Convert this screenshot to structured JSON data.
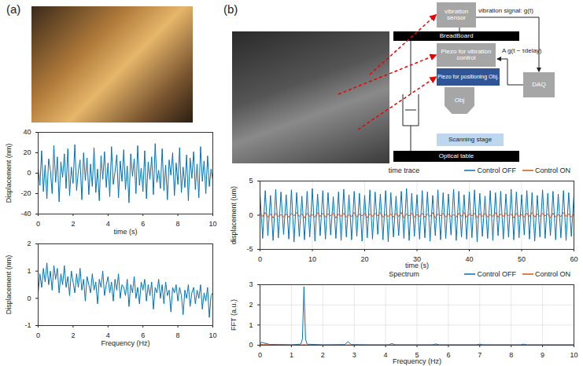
{
  "panel_labels": [
    "(a)",
    "(b)"
  ],
  "diagram": {
    "vibration_sensor": "vibration sensor",
    "breadboard": "BreadBoard",
    "piezo_vibration": "Piezo for vibration control",
    "piezo_positioning": "Piezo for positioning Obj.",
    "objective": "Obj",
    "daq": "DAQ",
    "scanning_stage": "Scanning stage",
    "optical_table": "Optical table",
    "signal_label": "vibration signal: g(t)",
    "feedback_label": "A g(t − τdelay)"
  },
  "chart_data": [
    {
      "type": "line",
      "xlabel": "time (s)",
      "ylabel": "Displacement (nm)",
      "xlim": [
        0,
        10
      ],
      "xticks": [
        0,
        2,
        4,
        6,
        8,
        10
      ],
      "ylim": [
        -40,
        40
      ],
      "yticks": [
        -40,
        -20,
        0,
        20,
        40
      ],
      "grid": false,
      "x": [
        0,
        0.1,
        0.2,
        0.3,
        0.4,
        0.5,
        0.6,
        0.7,
        0.8,
        0.9,
        1,
        1.1,
        1.2,
        1.3,
        1.4,
        1.5,
        1.6,
        1.7,
        1.8,
        1.9,
        2,
        2.1,
        2.2,
        2.3,
        2.4,
        2.5,
        2.6,
        2.7,
        2.8,
        2.9,
        3,
        3.1,
        3.2,
        3.3,
        3.4,
        3.5,
        3.6,
        3.7,
        3.8,
        3.9,
        4,
        4.1,
        4.2,
        4.3,
        4.4,
        4.5,
        4.6,
        4.7,
        4.8,
        4.9,
        5,
        5.1,
        5.2,
        5.3,
        5.4,
        5.5,
        5.6,
        5.7,
        5.8,
        5.9,
        6,
        6.1,
        6.2,
        6.3,
        6.4,
        6.5,
        6.6,
        6.7,
        6.8,
        6.9,
        7,
        7.1,
        7.2,
        7.3,
        7.4,
        7.5,
        7.6,
        7.7,
        7.8,
        7.9,
        8,
        8.1,
        8.2,
        8.3,
        8.4,
        8.5,
        8.6,
        8.7,
        8.8,
        8.9,
        9,
        9.1,
        9.2,
        9.3,
        9.4,
        9.5,
        9.6,
        9.7,
        9.8,
        9.9,
        10
      ],
      "series": [
        {
          "color": "#0072bd",
          "values": [
            5,
            -12,
            22,
            -18,
            8,
            -25,
            14,
            3,
            -20,
            27,
            -9,
            16,
            -28,
            11,
            -4,
            19,
            -15,
            24,
            -22,
            6,
            -10,
            28,
            -17,
            2,
            13,
            -26,
            20,
            -7,
            15,
            -21,
            9,
            -13,
            25,
            -19,
            4,
            -27,
            17,
            -6,
            21,
            -14,
            10,
            -23,
            26,
            -11,
            1,
            18,
            -24,
            12,
            -8,
            23,
            -16,
            7,
            -29,
            19,
            -3,
            14,
            -20,
            27,
            -12,
            5,
            -18,
            22,
            -25,
            11,
            -6,
            16,
            -21,
            29,
            -9,
            3,
            -15,
            24,
            -17,
            8,
            -26,
            13,
            -2,
            20,
            -22,
            10,
            -11,
            25,
            -19,
            6,
            -14,
            18,
            -27,
            15,
            -5,
            21,
            -16,
            9,
            -24,
            26,
            -8,
            12,
            -20,
            17,
            -13,
            4,
            -7
          ]
        }
      ]
    },
    {
      "type": "line",
      "xlabel": "Frequency (Hz)",
      "ylabel": "Displacement (nm)",
      "xlim": [
        0,
        10
      ],
      "xticks": [
        0,
        2,
        4,
        6,
        8,
        10
      ],
      "ylim": [
        -1,
        2
      ],
      "yticks": [
        -1,
        0,
        1,
        2
      ],
      "grid": false,
      "x": [
        0,
        0.1,
        0.2,
        0.3,
        0.4,
        0.5,
        0.6,
        0.7,
        0.8,
        0.9,
        1,
        1.1,
        1.2,
        1.3,
        1.4,
        1.5,
        1.6,
        1.7,
        1.8,
        1.9,
        2,
        2.1,
        2.2,
        2.3,
        2.4,
        2.5,
        2.6,
        2.7,
        2.8,
        2.9,
        3,
        3.1,
        3.2,
        3.3,
        3.4,
        3.5,
        3.6,
        3.7,
        3.8,
        3.9,
        4,
        4.1,
        4.2,
        4.3,
        4.4,
        4.5,
        4.6,
        4.7,
        4.8,
        4.9,
        5,
        5.1,
        5.2,
        5.3,
        5.4,
        5.5,
        5.6,
        5.7,
        5.8,
        5.9,
        6,
        6.1,
        6.2,
        6.3,
        6.4,
        6.5,
        6.6,
        6.7,
        6.8,
        6.9,
        7,
        7.1,
        7.2,
        7.3,
        7.4,
        7.5,
        7.6,
        7.7,
        7.8,
        7.9,
        8,
        8.1,
        8.2,
        8.3,
        8.4,
        8.5,
        8.6,
        8.7,
        8.8,
        8.9,
        9,
        9.1,
        9.2,
        9.3,
        9.4,
        9.5,
        9.6,
        9.7,
        9.8,
        9.9,
        10
      ],
      "series": [
        {
          "color": "#0072bd",
          "values": [
            0.2,
            0.9,
            0.4,
            1.1,
            0.6,
            1.3,
            0.5,
            1.0,
            0.3,
            1.2,
            0.7,
            1.1,
            0.2,
            0.9,
            0.5,
            1.2,
            0.4,
            0.8,
            0.1,
            1.0,
            0.6,
            0.2,
            0.9,
            0.4,
            1.1,
            0.3,
            0.7,
            -0.1,
            0.8,
            0.5,
            0.2,
            0.9,
            0.3,
            0.6,
            -0.2,
            0.7,
            0.4,
            1.0,
            0.1,
            0.5,
            0.8,
            0.2,
            0.6,
            -0.1,
            0.7,
            0.3,
            0.9,
            0.0,
            0.5,
            0.4,
            0.1,
            0.7,
            -0.3,
            0.5,
            0.2,
            0.8,
            0.0,
            0.4,
            -0.2,
            0.6,
            0.3,
            0.7,
            -0.1,
            0.5,
            0.1,
            0.6,
            -0.4,
            0.4,
            0.2,
            0.7,
            0.0,
            0.5,
            -0.2,
            0.6,
            0.1,
            0.3,
            -0.5,
            0.4,
            0.2,
            0.5,
            -0.1,
            0.4,
            0.1,
            -0.6,
            0.3,
            0.0,
            0.5,
            -0.3,
            0.2,
            0.4,
            -0.2,
            0.3,
            0.0,
            0.5,
            -0.4,
            0.2,
            -0.1,
            0.4,
            -0.7,
            0.1,
            0.2
          ]
        }
      ]
    },
    {
      "type": "line",
      "title": "time trace",
      "xlabel": "time (s)",
      "ylabel": "displacement (um)",
      "xlim": [
        0,
        60
      ],
      "xticks": [
        0,
        10,
        20,
        30,
        40,
        50,
        60
      ],
      "ylim": [
        -5,
        5
      ],
      "yticks": [
        -5,
        0,
        5
      ],
      "grid": true,
      "legend": "top right",
      "x": [
        0,
        0.5,
        1,
        1.5,
        2,
        2.5,
        3,
        3.5,
        4,
        4.5,
        5,
        5.5,
        6,
        6.5,
        7,
        7.5,
        8,
        8.5,
        9,
        9.5,
        10,
        10.5,
        11,
        11.5,
        12,
        12.5,
        13,
        13.5,
        14,
        14.5,
        15,
        15.5,
        16,
        16.5,
        17,
        17.5,
        18,
        18.5,
        19,
        19.5,
        20,
        20.5,
        21,
        21.5,
        22,
        22.5,
        23,
        23.5,
        24,
        24.5,
        25,
        25.5,
        26,
        26.5,
        27,
        27.5,
        28,
        28.5,
        29,
        29.5,
        30,
        30.5,
        31,
        31.5,
        32,
        32.5,
        33,
        33.5,
        34,
        34.5,
        35,
        35.5,
        36,
        36.5,
        37,
        37.5,
        38,
        38.5,
        39,
        39.5,
        40,
        40.5,
        41,
        41.5,
        42,
        42.5,
        43,
        43.5,
        44,
        44.5,
        45,
        45.5,
        46,
        46.5,
        47,
        47.5,
        48,
        48.5,
        49,
        49.5,
        50,
        50.5,
        51,
        51.5,
        52,
        52.5,
        53,
        53.5,
        54,
        54.5,
        55,
        55.5,
        56,
        56.5,
        57,
        57.5,
        58,
        58.5,
        59,
        59.5,
        60
      ],
      "series": [
        {
          "name": "Control OFF",
          "color": "#0072bd",
          "values": [
            3.2,
            -3.4,
            3.6,
            -3.0,
            2.9,
            -3.7,
            3.8,
            -3.3,
            3.4,
            -2.8,
            3.0,
            -3.5,
            3.7,
            -3.9,
            3.3,
            -3.1,
            2.8,
            -3.6,
            3.5,
            -3.2,
            3.9,
            -3.8,
            3.1,
            -3.0,
            3.6,
            -3.5,
            3.3,
            -2.9,
            2.7,
            -3.4,
            3.4,
            -3.7,
            3.8,
            -3.2,
            3.0,
            -3.6,
            3.5,
            -3.1,
            3.2,
            -3.8,
            2.9,
            -3.3,
            3.7,
            -3.5,
            3.4,
            -2.8,
            3.1,
            -3.6,
            3.6,
            -3.9,
            3.3,
            -3.2,
            2.8,
            -3.0,
            3.5,
            -3.4,
            3.9,
            -3.7,
            3.2,
            -3.1,
            3.0,
            -3.5,
            3.6,
            -3.3,
            3.4,
            -3.8,
            2.9,
            -3.0,
            3.7,
            -3.6,
            3.3,
            -3.4,
            3.1,
            -2.9,
            3.8,
            -3.7,
            3.5,
            -3.2,
            3.0,
            -3.5,
            3.4,
            -3.3,
            3.7,
            -3.9,
            3.2,
            -3.1,
            2.8,
            -3.4,
            3.6,
            -3.7,
            3.3,
            -3.0,
            3.5,
            -3.5,
            3.1,
            -3.2,
            3.8,
            -3.6,
            3.4,
            -3.3,
            3.0,
            -2.9,
            3.6,
            -3.5,
            3.3,
            -3.8,
            2.9,
            -3.2,
            3.7,
            -3.4,
            3.2,
            -3.0,
            3.5,
            -3.6,
            3.1,
            -3.3,
            3.6,
            -3.7,
            3.3,
            -3.1,
            3.0
          ]
        },
        {
          "name": "Control ON",
          "color": "#d95319",
          "values": [
            0.3,
            -0.2,
            0.4,
            -0.3,
            0.2,
            -0.4,
            0.3,
            -0.2,
            0.1,
            -0.3,
            0.2,
            -0.3,
            0.3,
            -0.1,
            0.4,
            -0.2,
            0.2,
            -0.4,
            0.3,
            -0.2,
            0.1,
            -0.3,
            0.4,
            -0.2,
            0.3,
            -0.3,
            0.2,
            -0.1,
            0.3,
            -0.4,
            0.2,
            -0.2,
            0.3,
            -0.3,
            0.1,
            -0.2,
            0.4,
            -0.3,
            0.2,
            -0.1,
            0.3,
            -0.4,
            0.2,
            -0.2,
            0.3,
            -0.1,
            0.4,
            -0.3,
            0.1,
            -0.2,
            0.2,
            -0.3,
            0.3,
            -0.2,
            0.4,
            -0.4,
            0.2,
            -0.1,
            0.3,
            -0.3,
            0.1,
            -0.2,
            0.3,
            -0.3,
            0.2,
            -0.2,
            0.4,
            -0.4,
            0.2,
            -0.1,
            0.3,
            -0.3,
            0.2,
            -0.2,
            0.1,
            -0.3,
            0.3,
            -0.2,
            0.4,
            -0.3,
            0.2,
            -0.1,
            0.3,
            -0.4,
            0.2,
            -0.2,
            0.3,
            -0.3,
            0.1,
            -0.2,
            0.4,
            -0.3,
            0.2,
            -0.2,
            0.3,
            -0.1,
            0.2,
            -0.4,
            0.3,
            -0.2,
            0.1,
            -0.3,
            0.3,
            -0.2,
            0.4,
            -0.3,
            0.2,
            -0.2,
            0.3,
            -0.1,
            0.2,
            -0.4,
            0.3,
            -0.3,
            0.1,
            -0.2,
            0.4,
            -0.2,
            0.2,
            -0.3,
            0.2
          ]
        }
      ]
    },
    {
      "type": "line",
      "title": "Spectrum",
      "xlabel": "Frequency (Hz)",
      "ylabel": "FFT (a.u.)",
      "xlim": [
        0,
        10
      ],
      "xticks": [
        0,
        1,
        2,
        3,
        4,
        5,
        6,
        7,
        8,
        9,
        10
      ],
      "ylim": [
        0,
        3
      ],
      "yticks": [
        0,
        1,
        2,
        3
      ],
      "grid": true,
      "legend": "top right",
      "x": [
        0,
        0.05,
        0.1,
        0.3,
        0.6,
        1.0,
        1.3,
        1.35,
        1.4,
        1.45,
        1.5,
        2.0,
        2.7,
        2.8,
        2.9,
        3.5,
        4.1,
        4.2,
        4.3,
        5.0,
        5.5,
        5.6,
        5.7,
        6.5,
        6.9,
        7.0,
        7.1,
        8.0,
        8.3,
        8.4,
        8.5,
        9.0,
        10.0
      ],
      "series": [
        {
          "name": "Control OFF",
          "color": "#0072bd",
          "values": [
            0.05,
            0.15,
            0.12,
            0.04,
            0.03,
            0.02,
            0.05,
            0.3,
            2.9,
            0.3,
            0.05,
            0.02,
            0.03,
            0.18,
            0.03,
            0.02,
            0.02,
            0.08,
            0.02,
            0.02,
            0.02,
            0.06,
            0.02,
            0.02,
            0.02,
            0.05,
            0.02,
            0.02,
            0.02,
            0.05,
            0.02,
            0.02,
            0.02
          ]
        },
        {
          "name": "Control ON",
          "color": "#d95319",
          "values": [
            0.03,
            0.04,
            0.03,
            0.02,
            0.02,
            0.01,
            0.01,
            0.02,
            0.03,
            0.02,
            0.01,
            0.01,
            0.01,
            0.02,
            0.01,
            0.01,
            0.01,
            0.01,
            0.01,
            0.01,
            0.01,
            0.01,
            0.01,
            0.01,
            0.01,
            0.01,
            0.01,
            0.01,
            0.01,
            0.01,
            0.01,
            0.01,
            0.01
          ]
        }
      ]
    }
  ]
}
